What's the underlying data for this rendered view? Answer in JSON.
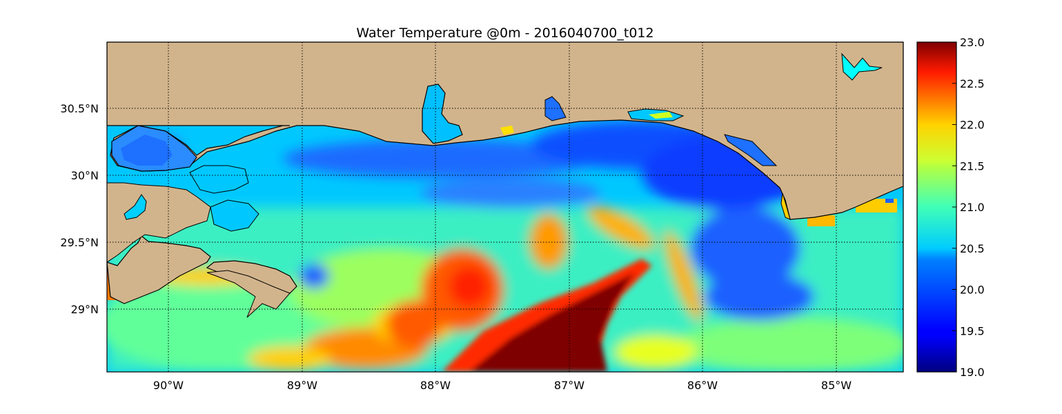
{
  "figure": {
    "title": "Water Temperature @0m - 2016040700_t012"
  },
  "map": {
    "lon_range": [
      -90.5,
      -84.5
    ],
    "lat_range": [
      28.55,
      31.0
    ],
    "meridians": [
      -90,
      -89,
      -88,
      -87,
      -86,
      -85
    ],
    "parallels": [
      29.0,
      29.5,
      30.0,
      30.5
    ],
    "lon_labels": [
      "90°W",
      "89°W",
      "88°W",
      "87°W",
      "86°W",
      "85°W"
    ],
    "lat_labels": [
      "29°N",
      "29.5°N",
      "30°N",
      "30.5°N"
    ],
    "land_color": "#d2b48c",
    "coast_color": "#000000",
    "warm_core": {
      "description_values": "tongue of 23.0 water along bottom center",
      "peak_value": 23.0
    },
    "field_min_visible": 19.6,
    "field_max_visible": 23.0
  },
  "colorbar": {
    "min": 19.0,
    "max": 23.0,
    "colormap": "jet",
    "ticks": [
      "19.0",
      "19.5",
      "20.0",
      "20.5",
      "21.0",
      "21.5",
      "22.0",
      "22.5",
      "23.0"
    ]
  }
}
